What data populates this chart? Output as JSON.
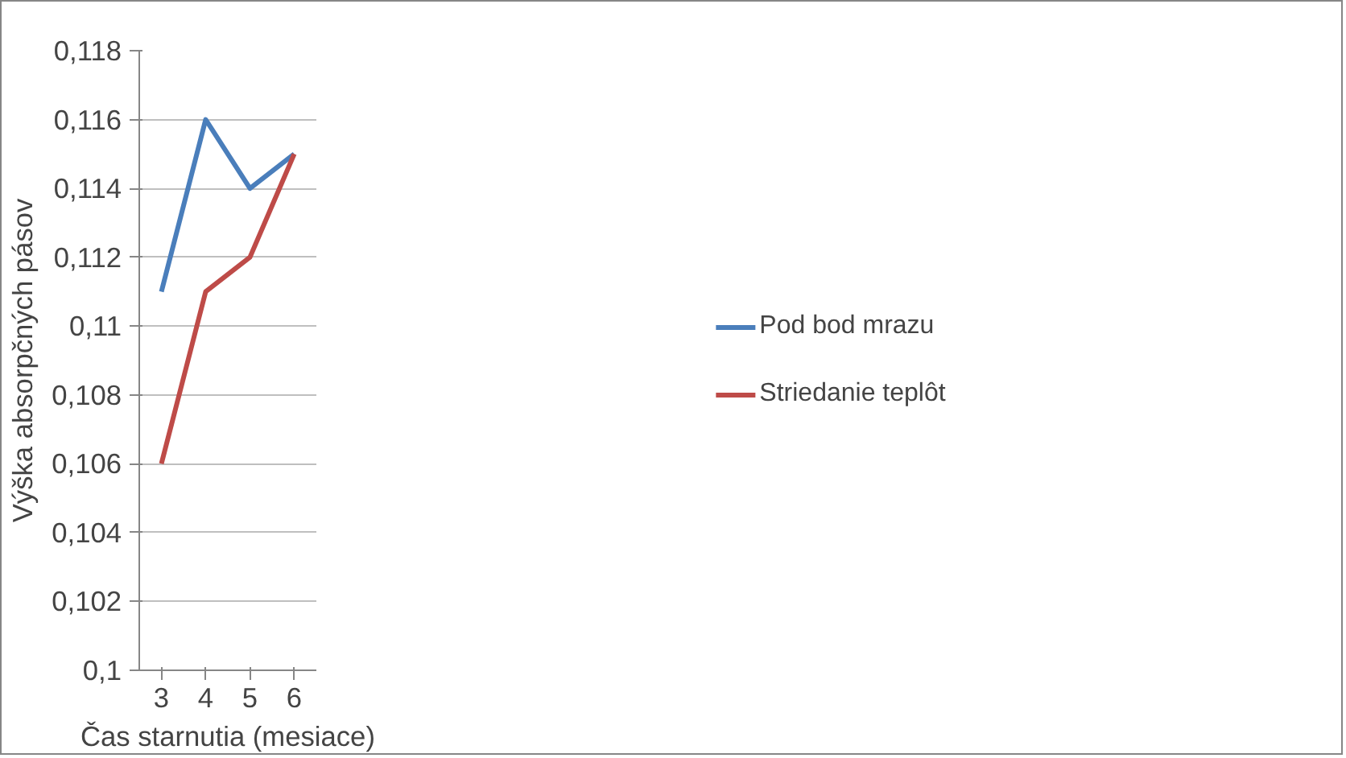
{
  "chart_data": {
    "type": "line",
    "xlabel": "Čas starnutia (mesiace)",
    "ylabel": "Výška absorpčných pásov",
    "categories": [
      "3",
      "4",
      "5",
      "6"
    ],
    "series": [
      {
        "name": "Pod bod mrazu",
        "color": "#4a7ebb",
        "values": [
          0.111,
          0.116,
          0.114,
          0.115
        ]
      },
      {
        "name": "Striedanie teplôt",
        "color": "#be4b48",
        "values": [
          0.106,
          0.111,
          0.112,
          0.115
        ]
      }
    ],
    "ylim": [
      0.1,
      0.118
    ],
    "yticks": [
      {
        "value": 0.1,
        "label": "0,1"
      },
      {
        "value": 0.102,
        "label": "0,102"
      },
      {
        "value": 0.104,
        "label": "0,104"
      },
      {
        "value": 0.106,
        "label": "0,106"
      },
      {
        "value": 0.108,
        "label": "0,108"
      },
      {
        "value": 0.11,
        "label": "0,11"
      },
      {
        "value": 0.112,
        "label": "0,112"
      },
      {
        "value": 0.114,
        "label": "0,114"
      },
      {
        "value": 0.116,
        "label": "0,116"
      },
      {
        "value": 0.118,
        "label": "0,118"
      }
    ],
    "grid": "y",
    "legend": "right",
    "marker": "none",
    "line_style": "solid"
  }
}
